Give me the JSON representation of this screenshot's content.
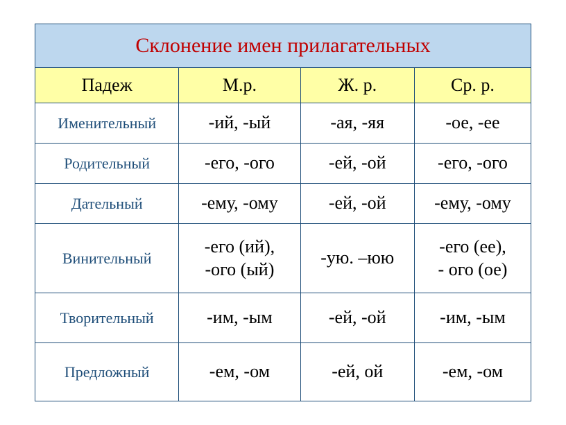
{
  "title": "Склонение имен прилагательных",
  "headers": {
    "case": "Падеж",
    "masc": "М.р.",
    "fem": "Ж. р.",
    "neut": "Ср. р."
  },
  "rows": [
    {
      "case": "Именительный",
      "m": "-ий, -ый",
      "f": "-ая, -яя",
      "n": "-ое, -ее"
    },
    {
      "case": "Родительный",
      "m": "-его, -ого",
      "f": "-ей, -ой",
      "n": "-его, -ого"
    },
    {
      "case": "Дательный",
      "m": "-ему, -ому",
      "f": "-ей, -ой",
      "n": "-ему, -ому"
    },
    {
      "case": "Винительный",
      "m": "-его (ий),\n-ого (ый)",
      "f": "-ую. –юю",
      "n": "-его (ее),\n- ого (ое)"
    },
    {
      "case": "Творительный",
      "m": "-им, -ым",
      "f": "-ей, -ой",
      "n": "-им, -ым"
    },
    {
      "case": "Предложный",
      "m": "-ем, -ом",
      "f": "-ей, ой",
      "n": "-ем, -ом"
    }
  ],
  "colors": {
    "border": "#1f4e79",
    "title_bg": "#bdd7ee",
    "title_text": "#c00000",
    "header_bg": "#ffffa6",
    "case_text": "#1f4e79",
    "body_text": "#000000"
  },
  "fonts": {
    "family": "Times New Roman",
    "title_size_pt": 30,
    "header_size_pt": 26,
    "case_size_pt": 22,
    "value_size_pt": 26
  },
  "row_classes": [
    "r-nom",
    "r-gen",
    "r-dat",
    "r-acc",
    "r-ins",
    "r-pre"
  ]
}
